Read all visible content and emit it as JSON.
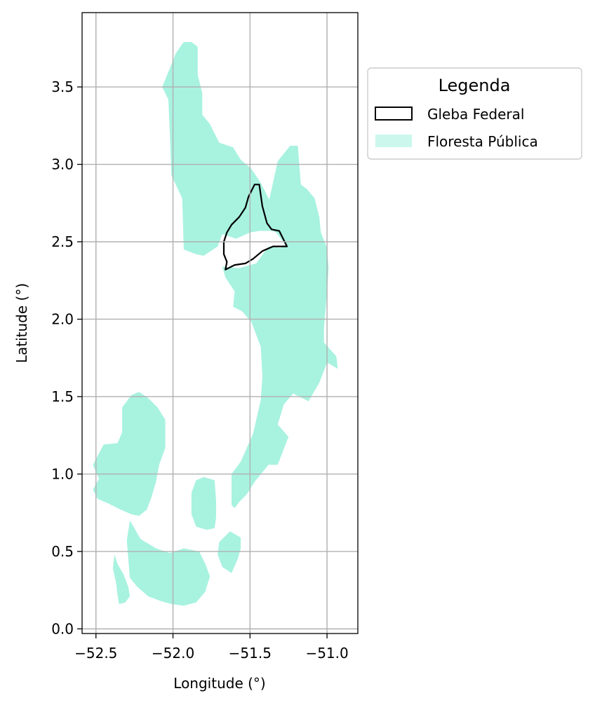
{
  "chart_data": {
    "type": "map",
    "xlabel": "Longitude (°)",
    "ylabel": "Latitude (°)",
    "xlim": [
      -52.59,
      -50.8
    ],
    "ylim": [
      -0.03,
      3.98
    ],
    "xticks": [
      -52.5,
      -52.0,
      -51.5,
      -51.0
    ],
    "xtick_labels": [
      "−52.5",
      "−52.0",
      "−51.5",
      "−51.0"
    ],
    "yticks": [
      0.0,
      0.5,
      1.0,
      1.5,
      2.0,
      2.5,
      3.0,
      3.5
    ],
    "ytick_labels": [
      "0.0",
      "0.5",
      "1.0",
      "1.5",
      "2.0",
      "2.5",
      "3.0",
      "3.5"
    ],
    "grid": true,
    "legend": {
      "title": "Legenda",
      "placement": "upper-right-outside",
      "entries": [
        {
          "label": "Gleba Federal",
          "style": "outline",
          "color": "#000000"
        },
        {
          "label": "Floresta Pública",
          "style": "fill",
          "color": "#a8f2e0"
        }
      ]
    },
    "layers": [
      {
        "name": "Floresta Pública",
        "color": "#a8f2e0",
        "polygons": [
          [
            [
              -52.07,
              3.5
            ],
            [
              -51.98,
              3.72
            ],
            [
              -51.93,
              3.79
            ],
            [
              -51.88,
              3.79
            ],
            [
              -51.84,
              3.76
            ],
            [
              -51.84,
              3.58
            ],
            [
              -51.81,
              3.46
            ],
            [
              -51.81,
              3.32
            ],
            [
              -51.76,
              3.26
            ],
            [
              -51.7,
              3.14
            ],
            [
              -51.61,
              3.11
            ],
            [
              -51.56,
              3.03
            ],
            [
              -51.49,
              2.97
            ],
            [
              -51.43,
              2.88
            ],
            [
              -51.38,
              2.78
            ],
            [
              -51.33,
              2.73
            ],
            [
              -51.31,
              2.62
            ],
            [
              -51.35,
              2.57
            ],
            [
              -51.44,
              2.57
            ],
            [
              -51.5,
              2.56
            ],
            [
              -51.59,
              2.52
            ],
            [
              -51.68,
              2.55
            ],
            [
              -51.71,
              2.47
            ],
            [
              -51.8,
              2.41
            ],
            [
              -51.85,
              2.42
            ],
            [
              -51.93,
              2.45
            ],
            [
              -51.94,
              2.78
            ],
            [
              -52.01,
              2.93
            ],
            [
              -52.02,
              3.2
            ],
            [
              -52.03,
              3.42
            ]
          ],
          [
            [
              -51.38,
              2.75
            ],
            [
              -51.32,
              3.02
            ],
            [
              -51.24,
              3.12
            ],
            [
              -51.19,
              3.12
            ],
            [
              -51.17,
              2.87
            ],
            [
              -51.13,
              2.84
            ],
            [
              -51.08,
              2.78
            ],
            [
              -51.05,
              2.66
            ],
            [
              -51.04,
              2.56
            ],
            [
              -51.0,
              2.46
            ],
            [
              -50.99,
              2.33
            ],
            [
              -51.0,
              2.18
            ],
            [
              -51.02,
              1.94
            ],
            [
              -51.02,
              1.85
            ],
            [
              -50.94,
              1.76
            ],
            [
              -50.93,
              1.68
            ],
            [
              -51.0,
              1.72
            ],
            [
              -51.05,
              1.59
            ],
            [
              -51.12,
              1.47
            ],
            [
              -51.22,
              1.52
            ],
            [
              -51.28,
              1.45
            ],
            [
              -51.32,
              1.32
            ],
            [
              -51.25,
              1.24
            ],
            [
              -51.32,
              1.06
            ],
            [
              -51.38,
              1.06
            ],
            [
              -51.47,
              0.95
            ],
            [
              -51.52,
              0.87
            ],
            [
              -51.57,
              0.82
            ],
            [
              -51.6,
              0.78
            ],
            [
              -51.62,
              0.8
            ],
            [
              -51.62,
              1.0
            ],
            [
              -51.56,
              1.08
            ],
            [
              -51.48,
              1.26
            ],
            [
              -51.43,
              1.48
            ],
            [
              -51.42,
              1.63
            ],
            [
              -51.43,
              1.82
            ],
            [
              -51.49,
              1.98
            ],
            [
              -51.55,
              2.05
            ],
            [
              -51.61,
              2.08
            ],
            [
              -51.6,
              2.18
            ],
            [
              -51.66,
              2.27
            ],
            [
              -51.68,
              2.34
            ],
            [
              -51.57,
              2.33
            ],
            [
              -51.46,
              2.36
            ],
            [
              -51.38,
              2.47
            ],
            [
              -51.3,
              2.46
            ],
            [
              -51.27,
              2.48
            ],
            [
              -51.33,
              2.56
            ],
            [
              -51.38,
              2.58
            ],
            [
              -51.38,
              2.66
            ]
          ],
          [
            [
              -52.52,
              1.06
            ],
            [
              -52.45,
              1.19
            ],
            [
              -52.36,
              1.2
            ],
            [
              -52.33,
              1.27
            ],
            [
              -52.33,
              1.43
            ],
            [
              -52.27,
              1.51
            ],
            [
              -52.22,
              1.53
            ],
            [
              -52.16,
              1.49
            ],
            [
              -52.1,
              1.43
            ],
            [
              -52.05,
              1.35
            ],
            [
              -52.05,
              1.17
            ],
            [
              -52.09,
              1.06
            ],
            [
              -52.11,
              0.95
            ],
            [
              -52.14,
              0.85
            ],
            [
              -52.17,
              0.77
            ],
            [
              -52.22,
              0.73
            ],
            [
              -52.27,
              0.74
            ],
            [
              -52.34,
              0.77
            ],
            [
              -52.42,
              0.81
            ],
            [
              -52.49,
              0.84
            ],
            [
              -52.52,
              0.9
            ],
            [
              -52.48,
              0.97
            ]
          ],
          [
            [
              -52.28,
              0.7
            ],
            [
              -52.21,
              0.58
            ],
            [
              -52.11,
              0.52
            ],
            [
              -52.02,
              0.49
            ],
            [
              -51.93,
              0.52
            ],
            [
              -51.83,
              0.5
            ],
            [
              -51.79,
              0.42
            ],
            [
              -51.76,
              0.34
            ],
            [
              -51.79,
              0.24
            ],
            [
              -51.85,
              0.17
            ],
            [
              -51.93,
              0.15
            ],
            [
              -52.01,
              0.16
            ],
            [
              -52.08,
              0.18
            ],
            [
              -52.16,
              0.21
            ],
            [
              -52.23,
              0.27
            ],
            [
              -52.28,
              0.33
            ],
            [
              -52.29,
              0.45
            ],
            [
              -52.3,
              0.57
            ]
          ],
          [
            [
              -51.85,
              0.96
            ],
            [
              -51.8,
              0.98
            ],
            [
              -51.73,
              0.96
            ],
            [
              -51.72,
              0.83
            ],
            [
              -51.72,
              0.72
            ],
            [
              -51.73,
              0.65
            ],
            [
              -51.78,
              0.64
            ],
            [
              -51.85,
              0.66
            ],
            [
              -51.88,
              0.74
            ],
            [
              -51.88,
              0.88
            ]
          ],
          [
            [
              -51.63,
              0.63
            ],
            [
              -51.56,
              0.59
            ],
            [
              -51.56,
              0.52
            ],
            [
              -51.58,
              0.45
            ],
            [
              -51.62,
              0.36
            ],
            [
              -51.68,
              0.4
            ],
            [
              -51.71,
              0.48
            ],
            [
              -51.7,
              0.56
            ]
          ],
          [
            [
              -52.38,
              0.48
            ],
            [
              -52.36,
              0.42
            ],
            [
              -52.32,
              0.35
            ],
            [
              -52.29,
              0.27
            ],
            [
              -52.28,
              0.21
            ],
            [
              -52.31,
              0.17
            ],
            [
              -52.35,
              0.16
            ],
            [
              -52.36,
              0.22
            ],
            [
              -52.37,
              0.3
            ],
            [
              -52.39,
              0.39
            ]
          ]
        ]
      },
      {
        "name": "Gleba Federal",
        "color": "#000000",
        "polygons": [
          [
            [
              -51.66,
              2.32
            ],
            [
              -51.6,
              2.35
            ],
            [
              -51.53,
              2.36
            ],
            [
              -51.48,
              2.39
            ],
            [
              -51.42,
              2.44
            ],
            [
              -51.35,
              2.47
            ],
            [
              -51.26,
              2.47
            ],
            [
              -51.31,
              2.57
            ],
            [
              -51.36,
              2.58
            ],
            [
              -51.39,
              2.62
            ],
            [
              -51.42,
              2.73
            ],
            [
              -51.44,
              2.87
            ],
            [
              -51.47,
              2.87
            ],
            [
              -51.51,
              2.79
            ],
            [
              -51.53,
              2.72
            ],
            [
              -51.57,
              2.66
            ],
            [
              -51.62,
              2.61
            ],
            [
              -51.65,
              2.56
            ],
            [
              -51.67,
              2.5
            ],
            [
              -51.67,
              2.42
            ],
            [
              -51.65,
              2.37
            ]
          ]
        ]
      }
    ]
  }
}
